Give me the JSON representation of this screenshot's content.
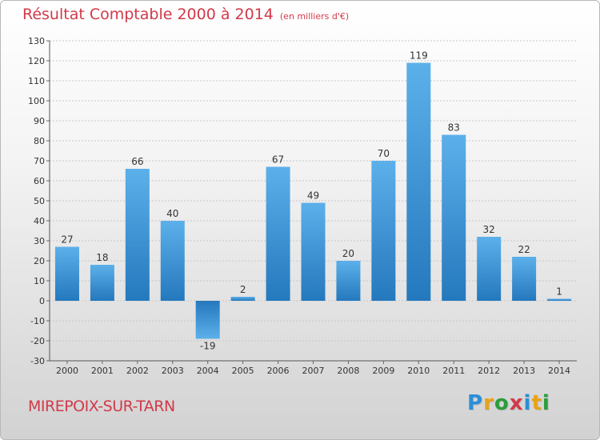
{
  "header": {
    "title": "Résultat Comptable 2000 à 2014",
    "unit": "(en milliers d'€)"
  },
  "footer": {
    "commune": "MIREPOIX-SUR-TARN",
    "logo_letters": [
      "P",
      "r",
      "o",
      "x",
      "i",
      "t",
      "i"
    ],
    "logo_colors": [
      "#2a8fd8",
      "#e8a317",
      "#2a9d3a",
      "#d2394a",
      "#2a8fd8",
      "#e8a317",
      "#2a9d3a"
    ]
  },
  "colors": {
    "bar_top": "#5cb0ea",
    "bar_bottom": "#2478bd",
    "neg_top": "#2478bd",
    "neg_bottom": "#5cb0ea",
    "grid": "#c8c8c8"
  },
  "chart_data": {
    "type": "bar",
    "title": "Résultat Comptable 2000 à 2014",
    "ylabel": "(en milliers d'€)",
    "xlabel": "",
    "categories": [
      "2000",
      "2001",
      "2002",
      "2003",
      "2004",
      "2005",
      "2006",
      "2007",
      "2008",
      "2009",
      "2010",
      "2011",
      "2012",
      "2013",
      "2014"
    ],
    "values": [
      27,
      18,
      66,
      40,
      -19,
      2,
      67,
      49,
      20,
      70,
      119,
      83,
      32,
      22,
      1
    ],
    "ylim": [
      -30,
      130
    ],
    "yticks": [
      -30,
      -20,
      -10,
      0,
      10,
      20,
      30,
      40,
      50,
      60,
      70,
      80,
      90,
      100,
      110,
      120,
      130
    ],
    "grid": true
  }
}
